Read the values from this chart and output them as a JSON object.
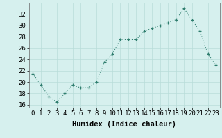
{
  "x": [
    0,
    1,
    2,
    3,
    4,
    5,
    6,
    7,
    8,
    9,
    10,
    11,
    12,
    13,
    14,
    15,
    16,
    17,
    18,
    19,
    20,
    21,
    22,
    23
  ],
  "y": [
    21.5,
    19.5,
    17.5,
    16.5,
    18.0,
    19.5,
    19.0,
    19.0,
    20.0,
    23.5,
    25.0,
    27.5,
    27.5,
    27.5,
    29.0,
    29.5,
    30.0,
    30.5,
    31.0,
    33.0,
    31.0,
    29.0,
    25.0,
    23.0
  ],
  "xlabel": "Humidex (Indice chaleur)",
  "ylim": [
    15.5,
    34
  ],
  "yticks": [
    16,
    18,
    20,
    22,
    24,
    26,
    28,
    30,
    32
  ],
  "xticks": [
    0,
    1,
    2,
    3,
    4,
    5,
    6,
    7,
    8,
    9,
    10,
    11,
    12,
    13,
    14,
    15,
    16,
    17,
    18,
    19,
    20,
    21,
    22,
    23
  ],
  "line_color": "#2e7d6e",
  "marker": "+",
  "bg_color": "#d6f0ee",
  "grid_color": "#b8ddd9",
  "font_family": "monospace",
  "xlabel_fontsize": 7.5,
  "tick_fontsize": 6.5
}
